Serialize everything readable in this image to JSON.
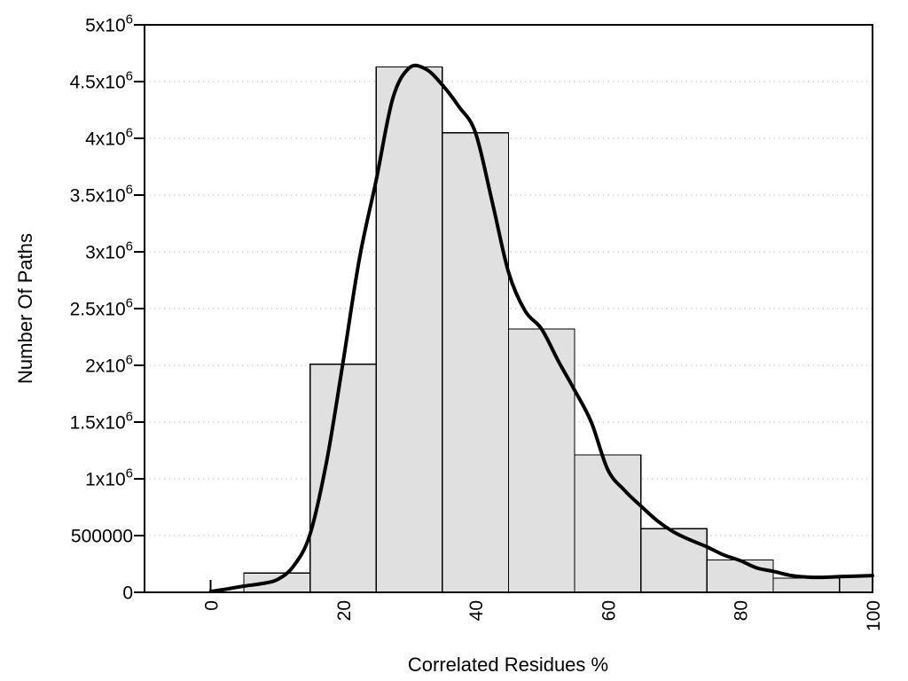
{
  "chart_data": {
    "type": "bar",
    "subtype": "histogram-with-smooth-curve",
    "title": "",
    "xlabel": "Correlated Residues %",
    "ylabel": "Number Of Paths",
    "xlim": [
      -10,
      100
    ],
    "ylim": [
      0,
      5000000
    ],
    "grid": "horizontal dotted lines at every y tick",
    "legend": "none",
    "x_ticks": [
      {
        "v": 0,
        "label": "0"
      },
      {
        "v": 20,
        "label": "20"
      },
      {
        "v": 40,
        "label": "40"
      },
      {
        "v": 60,
        "label": "60"
      },
      {
        "v": 80,
        "label": "80"
      },
      {
        "v": 100,
        "label": "100"
      }
    ],
    "y_ticks": [
      {
        "v": 0,
        "label": "0",
        "sup": ""
      },
      {
        "v": 500000,
        "label": "500000",
        "sup": ""
      },
      {
        "v": 1000000,
        "label": "1x10",
        "sup": "6"
      },
      {
        "v": 1500000,
        "label": "1.5x10",
        "sup": "6"
      },
      {
        "v": 2000000,
        "label": "2x10",
        "sup": "6"
      },
      {
        "v": 2500000,
        "label": "2.5x10",
        "sup": "6"
      },
      {
        "v": 3000000,
        "label": "3x10",
        "sup": "6"
      },
      {
        "v": 3500000,
        "label": "3.5x10",
        "sup": "6"
      },
      {
        "v": 4000000,
        "label": "4x10",
        "sup": "6"
      },
      {
        "v": 4500000,
        "label": "4.5x10",
        "sup": "6"
      },
      {
        "v": 5000000,
        "label": "5x10",
        "sup": "6"
      }
    ],
    "bars": [
      {
        "x0": 5,
        "x1": 15,
        "value": 170000
      },
      {
        "x0": 15,
        "x1": 25,
        "value": 2010000
      },
      {
        "x0": 25,
        "x1": 35,
        "value": 4630000
      },
      {
        "x0": 35,
        "x1": 45,
        "value": 4050000
      },
      {
        "x0": 45,
        "x1": 55,
        "value": 2320000
      },
      {
        "x0": 55,
        "x1": 65,
        "value": 1210000
      },
      {
        "x0": 65,
        "x1": 75,
        "value": 560000
      },
      {
        "x0": 75,
        "x1": 85,
        "value": 285000
      },
      {
        "x0": 85,
        "x1": 95,
        "value": 125000
      },
      {
        "x0": 95,
        "x1": 100,
        "value": 148000
      }
    ],
    "curve": [
      [
        0,
        8000
      ],
      [
        2.5,
        30000
      ],
      [
        5,
        55000
      ],
      [
        7.5,
        75000
      ],
      [
        10,
        110000
      ],
      [
        12.5,
        230000
      ],
      [
        15,
        510000
      ],
      [
        17.5,
        1150000
      ],
      [
        20,
        2030000
      ],
      [
        22.5,
        2950000
      ],
      [
        25,
        3630000
      ],
      [
        27.5,
        4350000
      ],
      [
        30,
        4620000
      ],
      [
        32.5,
        4610000
      ],
      [
        35,
        4470000
      ],
      [
        37.5,
        4280000
      ],
      [
        40,
        4050000
      ],
      [
        42.5,
        3450000
      ],
      [
        45,
        2820000
      ],
      [
        47.5,
        2480000
      ],
      [
        50,
        2320000
      ],
      [
        52.5,
        2040000
      ],
      [
        55,
        1780000
      ],
      [
        57.5,
        1500000
      ],
      [
        60,
        1080000
      ],
      [
        62.5,
        900000
      ],
      [
        65,
        760000
      ],
      [
        67.5,
        630000
      ],
      [
        70,
        530000
      ],
      [
        72.5,
        460000
      ],
      [
        75,
        400000
      ],
      [
        77.5,
        330000
      ],
      [
        80,
        280000
      ],
      [
        82.5,
        215000
      ],
      [
        85,
        185000
      ],
      [
        87.5,
        150000
      ],
      [
        90,
        135000
      ],
      [
        92.5,
        132000
      ],
      [
        95,
        138000
      ],
      [
        97.5,
        143000
      ],
      [
        100,
        148000
      ]
    ],
    "colors": {
      "background": "#ffffff",
      "bar_fill": "#e0e0e0",
      "bar_stroke": "#000000",
      "curve": "#000000",
      "grid": "#bfbfbf",
      "frame": "#000000",
      "text": "#000000"
    }
  }
}
